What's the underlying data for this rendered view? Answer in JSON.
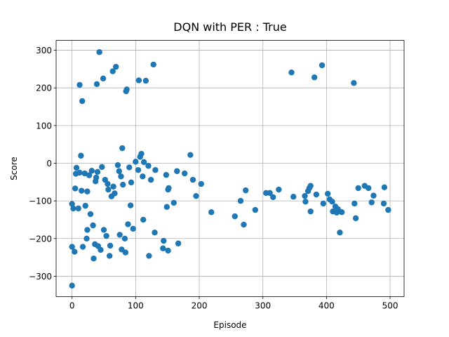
{
  "chart_data": {
    "type": "scatter",
    "title": "DQN with PER : True",
    "x_label": "Episode",
    "y_label": "Score",
    "color": "#1f77b4",
    "grid": true,
    "xlim": [
      -25,
      522
    ],
    "ylim": [
      -354,
      326
    ],
    "xticks": [
      0,
      100,
      200,
      300,
      400,
      500
    ],
    "yticks": [
      {
        "value": -300,
        "label": "−300"
      },
      {
        "value": -200,
        "label": "−200"
      },
      {
        "value": -100,
        "label": "−100"
      },
      0,
      100,
      200,
      300
    ],
    "x": [
      0,
      0,
      4,
      0,
      2,
      5,
      7,
      10,
      6,
      12,
      16,
      14,
      15,
      17,
      12,
      20,
      21,
      24,
      24,
      23,
      27,
      29,
      31,
      33,
      34,
      36,
      37,
      38,
      40,
      39,
      43,
      41,
      45,
      47,
      49,
      50,
      52,
      54,
      56,
      57,
      59,
      60,
      62,
      64,
      65,
      67,
      69,
      72,
      74,
      75,
      77,
      78,
      79,
      80,
      83,
      85,
      86,
      84,
      88,
      90,
      92,
      93,
      96,
      100,
      104,
      105,
      107,
      109,
      111,
      113,
      112,
      116,
      120,
      121,
      124,
      128,
      130,
      131,
      143,
      144,
      148,
      149,
      151,
      152,
      151,
      160,
      165,
      167,
      177,
      186,
      190,
      195,
      203,
      219,
      256,
      265,
      270,
      273,
      288,
      305,
      311,
      316,
      325,
      345,
      348,
      366,
      367,
      371,
      373,
      375,
      375,
      381,
      393,
      384,
      395,
      402,
      405,
      409,
      410,
      414,
      416,
      418,
      421,
      424,
      443,
      444,
      446,
      450,
      460,
      466,
      471,
      474,
      491,
      490,
      497
    ],
    "values": [
      -325,
      -222,
      -235,
      -108,
      -120,
      -67,
      -12,
      -120,
      -28,
      208,
      165,
      20,
      -73,
      -222,
      -25,
      -27,
      -113,
      -75,
      -177,
      -200,
      -32,
      -135,
      -20,
      -165,
      -253,
      -215,
      -48,
      -38,
      -23,
      210,
      295,
      -220,
      -230,
      -10,
      225,
      -177,
      -44,
      -193,
      -55,
      -70,
      -246,
      -219,
      -88,
      244,
      -62,
      -80,
      256,
      -5,
      -21,
      -190,
      -35,
      -229,
      40,
      -57,
      -200,
      191,
      196,
      -237,
      -162,
      -11,
      -112,
      -51,
      -174,
      4,
      -18,
      220,
      17,
      25,
      -35,
      3,
      -150,
      219,
      -7,
      -246,
      -44,
      262,
      -184,
      -18,
      -226,
      -206,
      -31,
      -116,
      -70,
      -66,
      -232,
      -105,
      -21,
      -213,
      -27,
      22,
      -44,
      -87,
      -55,
      -130,
      -141,
      -100,
      -163,
      -72,
      -124,
      -79,
      -79,
      -90,
      -70,
      241,
      -89,
      -87,
      -102,
      -74,
      -66,
      -128,
      -60,
      228,
      260,
      -83,
      -107,
      -81,
      -96,
      -102,
      -128,
      -115,
      -131,
      -122,
      -184,
      -130,
      213,
      -107,
      -146,
      -66,
      -60,
      -66,
      -104,
      -86,
      -64,
      -107,
      -124
    ]
  }
}
